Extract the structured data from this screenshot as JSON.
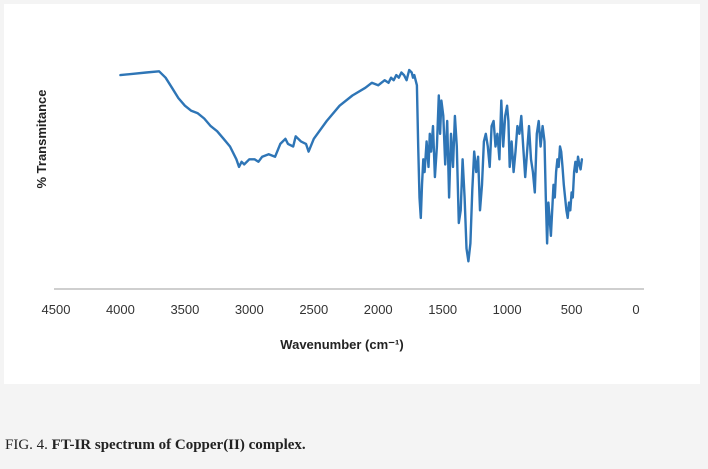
{
  "caption": {
    "label": "FIG. 4.",
    "title": "FT-IR spectrum of Copper(II) complex."
  },
  "colors": {
    "line": "#2e75b6",
    "axis": "#bfbfbf",
    "panel": "#ffffff"
  },
  "chart_data": {
    "type": "line",
    "title": "",
    "xlabel": "Wavenumber (cm⁻¹)",
    "ylabel": "% Transmitance",
    "xlim": [
      4500,
      0
    ],
    "x_reversed": true,
    "ylim": [
      0,
      100
    ],
    "x_ticks": [
      4500,
      4000,
      3500,
      3000,
      2500,
      2000,
      1500,
      1000,
      500,
      0
    ],
    "grid": false,
    "legend": "none",
    "series": [
      {
        "points": [
          [
            4000,
            78
          ],
          [
            3900,
            78.5
          ],
          [
            3800,
            79
          ],
          [
            3700,
            79.5
          ],
          [
            3650,
            77
          ],
          [
            3600,
            73
          ],
          [
            3550,
            69
          ],
          [
            3500,
            66
          ],
          [
            3450,
            64
          ],
          [
            3400,
            63
          ],
          [
            3350,
            61
          ],
          [
            3300,
            58
          ],
          [
            3250,
            56
          ],
          [
            3200,
            53
          ],
          [
            3150,
            50
          ],
          [
            3100,
            45
          ],
          [
            3080,
            42
          ],
          [
            3060,
            44
          ],
          [
            3040,
            43
          ],
          [
            3000,
            45
          ],
          [
            2960,
            45
          ],
          [
            2930,
            44
          ],
          [
            2900,
            46
          ],
          [
            2850,
            47
          ],
          [
            2800,
            46
          ],
          [
            2760,
            51
          ],
          [
            2720,
            53
          ],
          [
            2700,
            51
          ],
          [
            2660,
            50
          ],
          [
            2640,
            54
          ],
          [
            2600,
            52
          ],
          [
            2560,
            51
          ],
          [
            2540,
            48
          ],
          [
            2500,
            53
          ],
          [
            2400,
            60
          ],
          [
            2300,
            66
          ],
          [
            2200,
            70
          ],
          [
            2100,
            73
          ],
          [
            2050,
            75
          ],
          [
            2000,
            74
          ],
          [
            1950,
            76
          ],
          [
            1920,
            75
          ],
          [
            1900,
            77
          ],
          [
            1880,
            76
          ],
          [
            1860,
            78
          ],
          [
            1840,
            77
          ],
          [
            1820,
            79
          ],
          [
            1800,
            78
          ],
          [
            1780,
            76
          ],
          [
            1760,
            80
          ],
          [
            1740,
            79
          ],
          [
            1730,
            77
          ],
          [
            1720,
            78
          ],
          [
            1700,
            74
          ],
          [
            1690,
            50
          ],
          [
            1680,
            30
          ],
          [
            1670,
            22
          ],
          [
            1660,
            35
          ],
          [
            1650,
            45
          ],
          [
            1640,
            40
          ],
          [
            1625,
            52
          ],
          [
            1610,
            42
          ],
          [
            1600,
            55
          ],
          [
            1590,
            48
          ],
          [
            1575,
            58
          ],
          [
            1560,
            38
          ],
          [
            1545,
            50
          ],
          [
            1530,
            70
          ],
          [
            1520,
            55
          ],
          [
            1510,
            68
          ],
          [
            1495,
            62
          ],
          [
            1480,
            43
          ],
          [
            1465,
            60
          ],
          [
            1450,
            30
          ],
          [
            1435,
            55
          ],
          [
            1420,
            42
          ],
          [
            1405,
            62
          ],
          [
            1390,
            50
          ],
          [
            1375,
            20
          ],
          [
            1360,
            25
          ],
          [
            1345,
            45
          ],
          [
            1330,
            30
          ],
          [
            1315,
            10
          ],
          [
            1300,
            5
          ],
          [
            1285,
            12
          ],
          [
            1270,
            33
          ],
          [
            1255,
            48
          ],
          [
            1240,
            40
          ],
          [
            1225,
            46
          ],
          [
            1210,
            25
          ],
          [
            1195,
            35
          ],
          [
            1180,
            52
          ],
          [
            1165,
            55
          ],
          [
            1150,
            50
          ],
          [
            1135,
            42
          ],
          [
            1120,
            58
          ],
          [
            1105,
            60
          ],
          [
            1090,
            50
          ],
          [
            1075,
            55
          ],
          [
            1060,
            45
          ],
          [
            1045,
            68
          ],
          [
            1030,
            50
          ],
          [
            1015,
            62
          ],
          [
            1000,
            66
          ],
          [
            990,
            60
          ],
          [
            980,
            42
          ],
          [
            965,
            52
          ],
          [
            950,
            40
          ],
          [
            935,
            48
          ],
          [
            920,
            58
          ],
          [
            905,
            55
          ],
          [
            890,
            62
          ],
          [
            875,
            50
          ],
          [
            860,
            38
          ],
          [
            845,
            48
          ],
          [
            830,
            58
          ],
          [
            815,
            45
          ],
          [
            800,
            40
          ],
          [
            785,
            32
          ],
          [
            770,
            55
          ],
          [
            755,
            60
          ],
          [
            740,
            50
          ],
          [
            725,
            58
          ],
          [
            710,
            52
          ],
          [
            700,
            30
          ],
          [
            690,
            12
          ],
          [
            680,
            28
          ],
          [
            670,
            22
          ],
          [
            660,
            15
          ],
          [
            650,
            25
          ],
          [
            640,
            35
          ],
          [
            630,
            30
          ],
          [
            620,
            40
          ],
          [
            610,
            45
          ],
          [
            600,
            42
          ],
          [
            590,
            50
          ],
          [
            580,
            48
          ],
          [
            570,
            42
          ],
          [
            560,
            35
          ],
          [
            550,
            30
          ],
          [
            540,
            25
          ],
          [
            530,
            22
          ],
          [
            520,
            28
          ],
          [
            510,
            25
          ],
          [
            500,
            32
          ],
          [
            490,
            30
          ],
          [
            480,
            40
          ],
          [
            470,
            44
          ],
          [
            460,
            40
          ],
          [
            450,
            46
          ],
          [
            440,
            43
          ],
          [
            430,
            41
          ],
          [
            420,
            45
          ]
        ]
      }
    ]
  }
}
